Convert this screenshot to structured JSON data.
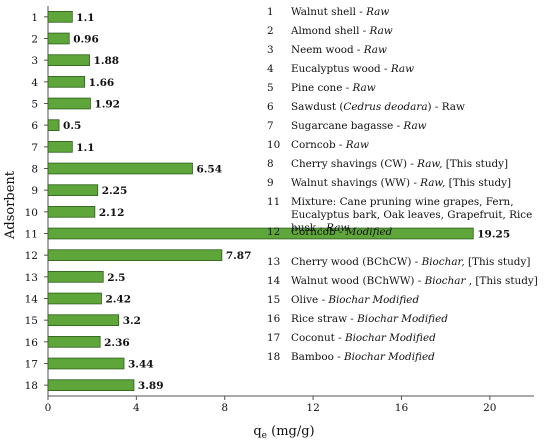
{
  "chart_data": {
    "type": "bar",
    "orientation": "horizontal",
    "categories": [
      "1",
      "2",
      "3",
      "4",
      "5",
      "6",
      "7",
      "8",
      "9",
      "10",
      "11",
      "12",
      "13",
      "14",
      "15",
      "16",
      "17",
      "18"
    ],
    "values": [
      1.1,
      0.96,
      1.88,
      1.66,
      1.92,
      0.5,
      1.1,
      6.54,
      2.25,
      2.12,
      19.25,
      7.87,
      2.5,
      2.42,
      3.2,
      2.36,
      3.44,
      3.89
    ],
    "value_labels": [
      "1.1",
      "0.96",
      "1.88",
      "1.66",
      "1.92",
      "0.5",
      "1.1",
      "6.54",
      "2.25",
      "2.12",
      "19.25",
      "7.87",
      "2.5",
      "2.42",
      "3.2",
      "2.36",
      "3.44",
      "3.89"
    ],
    "xlabel_main": "q",
    "xlabel_sub": "e",
    "xlabel_unit": " (mg/g)",
    "ylabel": "Adsorbent",
    "xlim": [
      0,
      22
    ],
    "xticks": [
      0,
      4,
      8,
      12,
      16,
      20
    ],
    "xtick_labels": [
      "0",
      "4",
      "8",
      "12",
      "16",
      "20"
    ],
    "bar_color": "#5fa63a",
    "bar_edge_color": "#2d5d1c",
    "grid": false
  },
  "legend": {
    "items": [
      {
        "num": "1",
        "text": "Walnut shell - ",
        "suffix": "Raw"
      },
      {
        "num": "2",
        "text": "Almond shell - ",
        "suffix": "Raw"
      },
      {
        "num": "3",
        "text": "Neem wood - ",
        "suffix": "Raw"
      },
      {
        "num": "4",
        "text": "Eucalyptus wood - ",
        "suffix": "Raw"
      },
      {
        "num": "5",
        "text": "Pine cone - ",
        "suffix": "Raw"
      },
      {
        "num": "6",
        "text": "Sawdust (",
        "species": "Cedrus deodara",
        "text2": ") - Raw"
      },
      {
        "num": "7",
        "text": "Sugarcane bagasse - ",
        "suffix": "Raw"
      },
      {
        "num": "10",
        "text": "Corncob - ",
        "suffix": "Raw"
      },
      {
        "num": "8",
        "text": "Cherry shavings (CW) - ",
        "suffix": "Raw,",
        "text2": " [This study]"
      },
      {
        "num": "9",
        "text": "Walnut shavings (WW) - ",
        "suffix": "Raw,",
        "text2": " [This study]"
      },
      {
        "num": "11",
        "text": "Mixture: Cane pruning wine grapes, Fern, Eucalyptus bark, Oak leaves, Grapefruit, Rice husk - ",
        "suffix": "Raw"
      },
      {
        "num": "12",
        "text": "Corncob - ",
        "suffix": "Modified"
      },
      {
        "num": "13",
        "text": "Cherry wood (BChCW) - ",
        "suffix": "Biochar,",
        "text2": "  [This study]"
      },
      {
        "num": "14",
        "text": "Walnut wood (BChWW) - ",
        "suffix": "Biochar",
        "text2": " , [This study]"
      },
      {
        "num": "15",
        "text": "Olive - ",
        "suffix": "Biochar  Modified"
      },
      {
        "num": "16",
        "text": "Rice straw - ",
        "suffix": "Biochar Modified"
      },
      {
        "num": "17",
        "text": "Coconut - ",
        "suffix": "Biochar Modified"
      },
      {
        "num": "18",
        "text": "Bamboo - ",
        "suffix": "Biochar Modified"
      }
    ]
  }
}
